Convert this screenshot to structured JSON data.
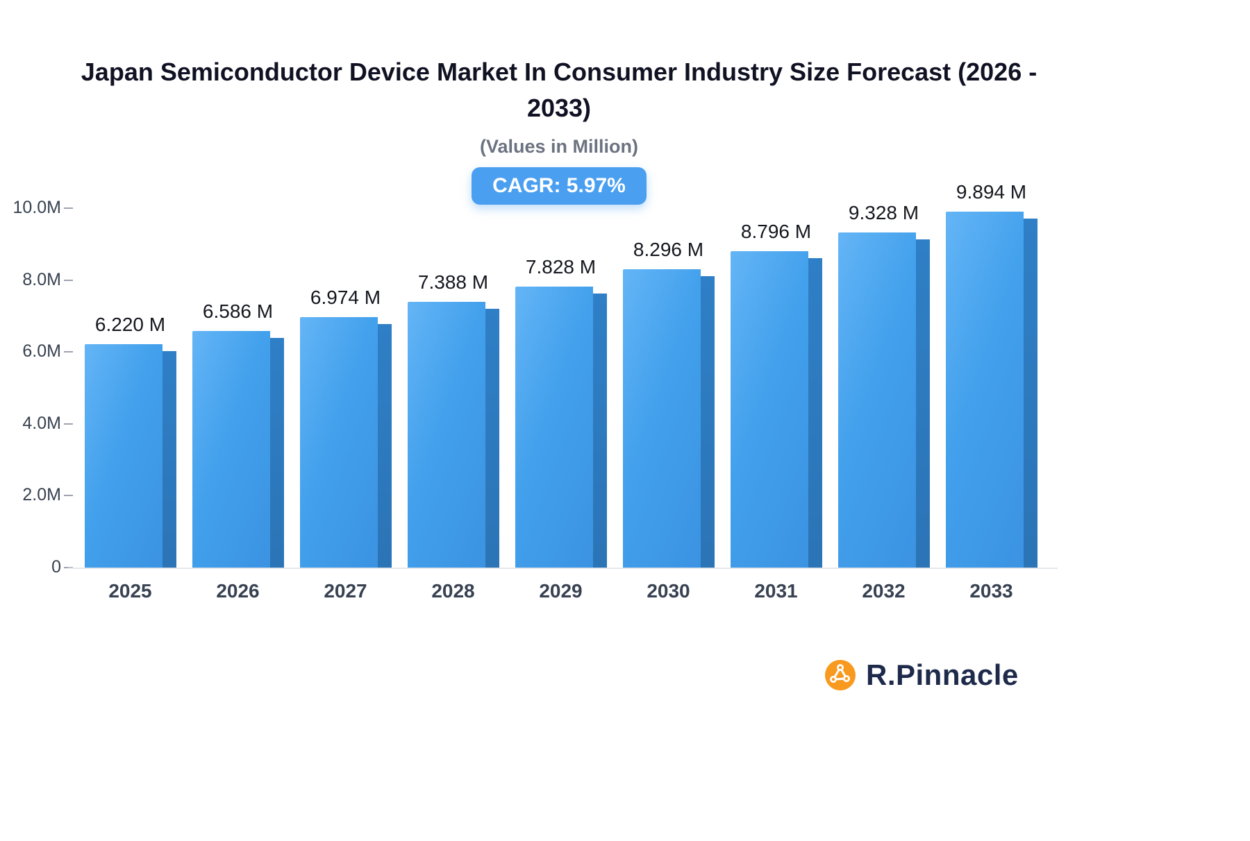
{
  "title": "Japan Semiconductor Device Market In Consumer Industry Size Forecast (2026 - 2033)",
  "subtitle": "(Values in Million)",
  "cagr_badge": "CAGR: 5.97%",
  "brand": {
    "name": "R.Pinnacle",
    "icon": "network-nodes-icon",
    "icon_color": "#f79a1f",
    "text_color": "#1e2a4a"
  },
  "colors": {
    "bar_face_light": "#64b5f6",
    "bar_face_dark": "#3b93e2",
    "bar_side": "#2d7ac0",
    "badge_bg": "#4a9ff0",
    "axis_text": "#374151"
  },
  "chart_data": {
    "type": "bar",
    "title": "Japan Semiconductor Device Market In Consumer Industry Size Forecast (2026 - 2033)",
    "subtitle": "(Values in Million)",
    "unit": "Million",
    "cagr": "5.97%",
    "categories": [
      "2025",
      "2026",
      "2027",
      "2028",
      "2029",
      "2030",
      "2031",
      "2032",
      "2033"
    ],
    "values": [
      6.22,
      6.586,
      6.974,
      7.388,
      7.828,
      8.296,
      8.796,
      9.328,
      9.894
    ],
    "value_labels": [
      "6.220 M",
      "6.586 M",
      "6.974 M",
      "7.388 M",
      "7.828 M",
      "8.296 M",
      "8.796 M",
      "9.328 M",
      "9.894 M"
    ],
    "xlabel": "",
    "ylabel": "",
    "ylim": [
      0,
      10
    ],
    "yticks": [
      0,
      2,
      4,
      6,
      8,
      10
    ],
    "ytick_labels": [
      "0",
      "2.0M",
      "4.0M",
      "6.0M",
      "8.0M",
      "10.0M"
    ],
    "grid": false,
    "legend": false,
    "bar_style": "3d-extruded-right"
  }
}
